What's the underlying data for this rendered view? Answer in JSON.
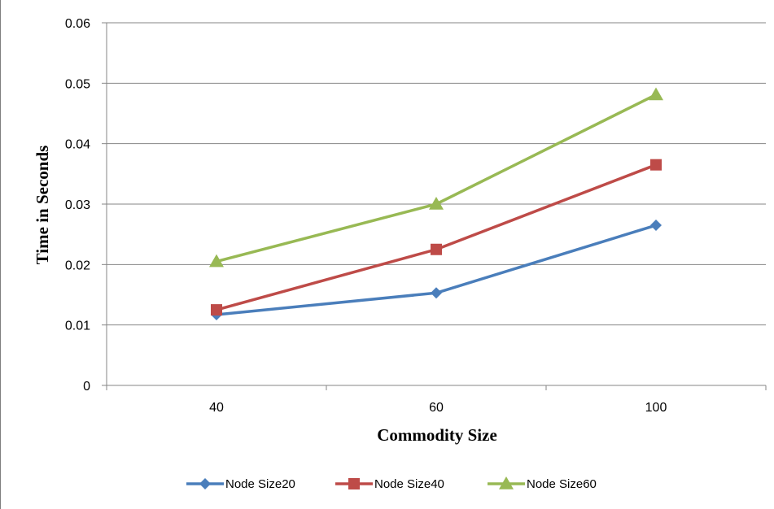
{
  "chart_data": {
    "type": "line",
    "title": "",
    "xlabel": "Commodity Size",
    "ylabel": "Time in Seconds",
    "categories": [
      "40",
      "60",
      "100"
    ],
    "ylim": [
      0,
      0.06
    ],
    "yticks": [
      "0",
      "0.01",
      "0.02",
      "0.03",
      "0.04",
      "0.05",
      "0.06"
    ],
    "grid": true,
    "legend_position": "bottom",
    "series": [
      {
        "name": "Node Size20",
        "values": [
          0.0117,
          0.0153,
          0.0265
        ],
        "color": "#4a7ebb",
        "marker": "diamond"
      },
      {
        "name": "Node Size40",
        "values": [
          0.0125,
          0.0225,
          0.0365
        ],
        "color": "#be4b48",
        "marker": "square"
      },
      {
        "name": "Node Size60",
        "values": [
          0.0205,
          0.03,
          0.0481
        ],
        "color": "#98b954",
        "marker": "triangle"
      }
    ]
  }
}
